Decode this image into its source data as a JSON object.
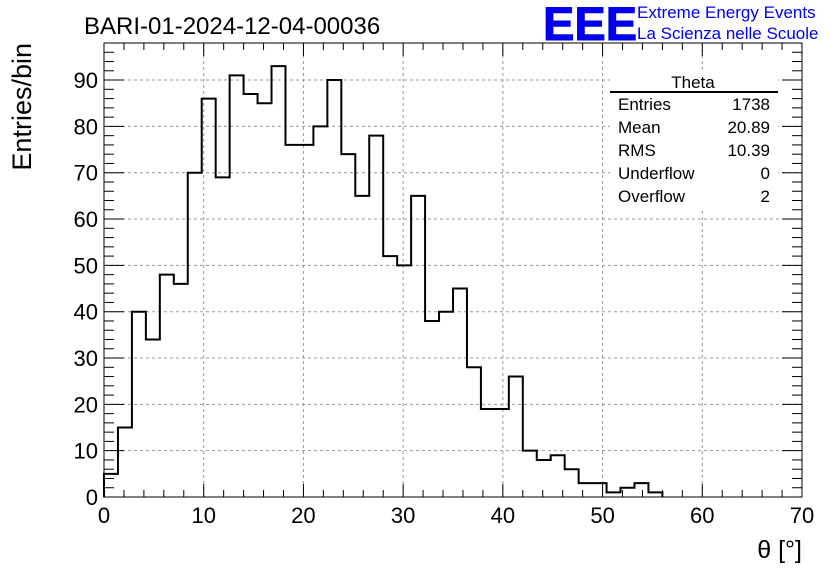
{
  "chart_data": {
    "type": "bar",
    "title": "BARI-01-2024-12-04-00036",
    "xlabel": "θ [°]",
    "ylabel": "Entries/bin",
    "xlim": [
      0,
      70
    ],
    "ylim": [
      0,
      98
    ],
    "grid": true,
    "bin_width": 1.4,
    "bin_start": 0,
    "values": [
      5,
      15,
      40,
      34,
      48,
      46,
      70,
      86,
      69,
      91,
      87,
      85,
      93,
      76,
      76,
      80,
      90,
      74,
      65,
      78,
      52,
      50,
      65,
      38,
      40,
      45,
      28,
      19,
      19,
      26,
      10,
      8,
      9,
      6,
      3,
      3,
      1,
      2,
      3,
      1
    ],
    "x_ticks": [
      "0",
      "10",
      "20",
      "30",
      "40",
      "50",
      "60",
      "70"
    ],
    "y_ticks": [
      "0",
      "10",
      "20",
      "30",
      "40",
      "50",
      "60",
      "70",
      "80",
      "90"
    ],
    "stats": {
      "title": "Theta",
      "rows": [
        {
          "label": "Entries",
          "value": "1738"
        },
        {
          "label": "Mean",
          "value": "20.89"
        },
        {
          "label": "RMS",
          "value": "10.39"
        },
        {
          "label": "Underflow",
          "value": "0"
        },
        {
          "label": "Overflow",
          "value": "2"
        }
      ]
    },
    "logo": {
      "mark": "EEE",
      "line1": "Extreme Energy Events",
      "line2": "La Scienza nelle Scuole",
      "color": "#0000ee"
    }
  }
}
